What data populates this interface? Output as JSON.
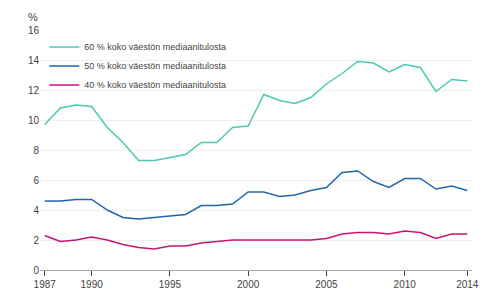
{
  "chart_data": {
    "type": "line",
    "ylabel": "%",
    "x": [
      1987,
      1988,
      1989,
      1990,
      1991,
      1992,
      1993,
      1994,
      1995,
      1996,
      1997,
      1998,
      1999,
      2000,
      2001,
      2002,
      2003,
      2004,
      2005,
      2006,
      2007,
      2008,
      2009,
      2010,
      2011,
      2012,
      2013,
      2014
    ],
    "series": [
      {
        "name": "60 % koko väestön mediaanitulosta",
        "color": "#4DC8B4",
        "values": [
          9.7,
          10.8,
          11.0,
          10.9,
          9.5,
          8.5,
          7.3,
          7.3,
          7.5,
          7.7,
          8.5,
          8.5,
          9.5,
          9.6,
          11.7,
          11.3,
          11.1,
          11.5,
          12.4,
          13.1,
          13.9,
          13.8,
          13.2,
          13.7,
          13.5,
          11.9,
          12.7,
          12.6
        ]
      },
      {
        "name": "50 % koko väestön mediaanitulosta",
        "color": "#2266AA",
        "values": [
          4.6,
          4.6,
          4.7,
          4.7,
          4.0,
          3.5,
          3.4,
          3.5,
          3.6,
          3.7,
          4.3,
          4.3,
          4.4,
          5.2,
          5.2,
          4.9,
          5.0,
          5.3,
          5.5,
          6.5,
          6.6,
          5.9,
          5.5,
          6.1,
          6.1,
          5.4,
          5.6,
          5.3
        ]
      },
      {
        "name": "40 % koko väestön mediaanitulosta",
        "color": "#CC1177",
        "values": [
          2.3,
          1.9,
          2.0,
          2.2,
          2.0,
          1.7,
          1.5,
          1.4,
          1.6,
          1.6,
          1.8,
          1.9,
          2.0,
          2.0,
          2.0,
          2.0,
          2.0,
          2.0,
          2.1,
          2.4,
          2.5,
          2.5,
          2.4,
          2.6,
          2.5,
          2.1,
          2.4,
          2.4
        ]
      }
    ],
    "xlim": [
      1986.7,
      2014.3
    ],
    "xticks": [
      1987,
      1990,
      1995,
      2000,
      2005,
      2010,
      2014
    ],
    "ylim": [
      0,
      16
    ],
    "yticks": [
      0,
      2,
      4,
      6,
      8,
      10,
      12,
      14,
      16
    ],
    "grid": "y",
    "legend": "upper left"
  }
}
